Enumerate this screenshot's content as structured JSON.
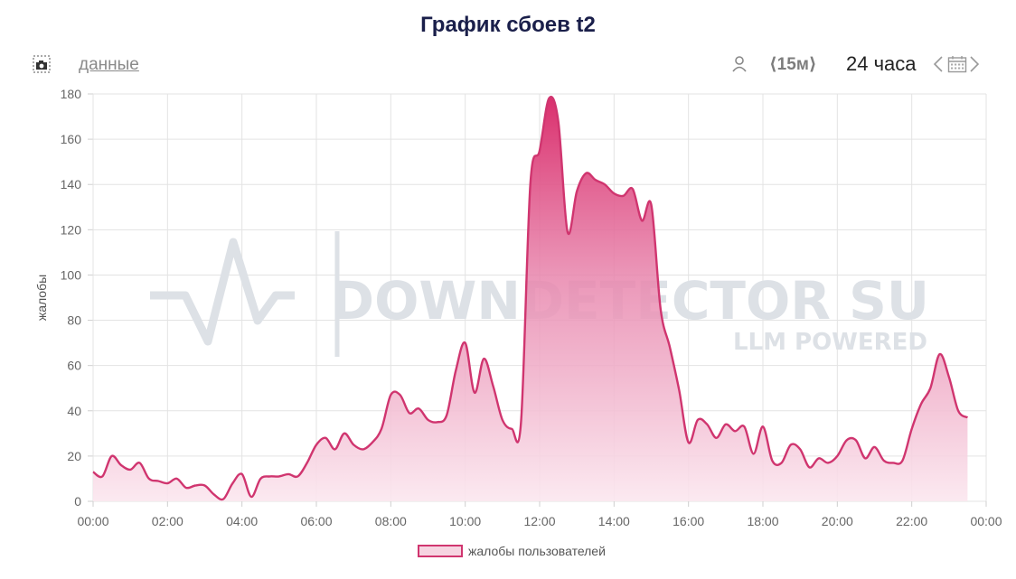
{
  "header": {
    "title": "График сбоев t2",
    "data_link": "данные",
    "interval": "⟨15м⟩",
    "range": "24 часа"
  },
  "icons": {
    "camera": "camera-icon",
    "user": "user-icon",
    "calendar": "calendar-icon",
    "prev": "chevron-left-icon",
    "next": "chevron-right-icon"
  },
  "watermark": {
    "line1": "DOWNDETECTOR SU",
    "line2": "LLM POWERED"
  },
  "colors": {
    "line": "#d0356f",
    "fill_top": "#d92b6a",
    "fill_bottom": "#fbe7ef",
    "grid": "#e3e3e3",
    "title": "#1a1f4a"
  },
  "chart_data": {
    "type": "area",
    "ylabel": "жалобы",
    "ylim": [
      0,
      180
    ],
    "yticks": [
      "0",
      "20",
      "40",
      "60",
      "80",
      "100",
      "120",
      "140",
      "160",
      "180"
    ],
    "xlim": [
      0,
      24
    ],
    "xticks": [
      "00:00",
      "02:00",
      "04:00",
      "06:00",
      "08:00",
      "10:00",
      "12:00",
      "14:00",
      "16:00",
      "18:00",
      "20:00",
      "22:00",
      "00:00"
    ],
    "legend": {
      "position": "bottom-center"
    },
    "grid": true,
    "series": [
      {
        "name": "жалобы пользователей",
        "x": [
          0,
          0.25,
          0.5,
          0.75,
          1,
          1.25,
          1.5,
          1.75,
          2,
          2.25,
          2.5,
          2.75,
          3,
          3.25,
          3.5,
          3.75,
          4,
          4.25,
          4.5,
          4.75,
          5,
          5.25,
          5.5,
          5.75,
          6,
          6.25,
          6.5,
          6.75,
          7,
          7.25,
          7.5,
          7.75,
          8,
          8.25,
          8.5,
          8.75,
          9,
          9.25,
          9.5,
          9.75,
          10,
          10.25,
          10.5,
          10.75,
          11,
          11.25,
          11.5,
          11.75,
          12,
          12.25,
          12.5,
          12.75,
          13,
          13.25,
          13.5,
          13.75,
          14,
          14.25,
          14.5,
          14.75,
          15,
          15.25,
          15.5,
          15.75,
          16,
          16.25,
          16.5,
          16.75,
          17,
          17.25,
          17.5,
          17.75,
          18,
          18.25,
          18.5,
          18.75,
          19,
          19.25,
          19.5,
          19.75,
          20,
          20.25,
          20.5,
          20.75,
          21,
          21.25,
          21.5,
          21.75,
          22,
          22.25,
          22.5,
          22.75,
          23,
          23.25,
          23.5
        ],
        "values": [
          13,
          11,
          20,
          16,
          14,
          17,
          10,
          9,
          8,
          10,
          6,
          7,
          7,
          3,
          1,
          8,
          12,
          2,
          10,
          11,
          11,
          12,
          11,
          17,
          25,
          28,
          23,
          30,
          25,
          23,
          26,
          32,
          47,
          47,
          39,
          41,
          36,
          35,
          38,
          58,
          70,
          48,
          63,
          51,
          36,
          32,
          35,
          140,
          155,
          178,
          168,
          119,
          137,
          145,
          142,
          140,
          136,
          135,
          138,
          124,
          131,
          85,
          68,
          49,
          26,
          36,
          34,
          28,
          34,
          31,
          33,
          21,
          33,
          18,
          17,
          25,
          23,
          15,
          19,
          17,
          20,
          27,
          27,
          19,
          24,
          18,
          17,
          18,
          32,
          43,
          50,
          65,
          55,
          40,
          37
        ]
      }
    ]
  }
}
